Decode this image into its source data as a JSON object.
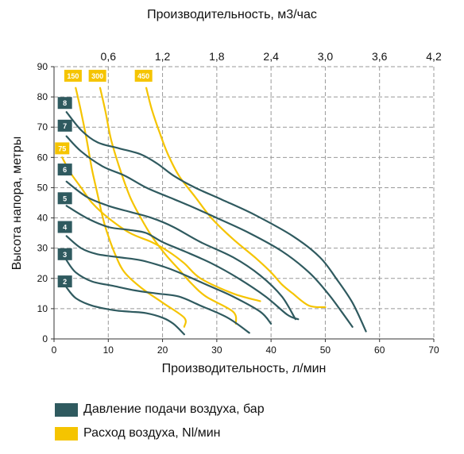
{
  "chart_data": {
    "type": "line",
    "title": "",
    "xlabel": "Производительность, л/мин",
    "x2label": "Производительность, м3/час",
    "ylabel": "Высота напора, метры",
    "xlim": [
      0,
      70
    ],
    "ylim": [
      0,
      90
    ],
    "x_ticks": [
      "0",
      "10",
      "20",
      "30",
      "40",
      "50",
      "60",
      "70"
    ],
    "y_ticks": [
      "0",
      "10",
      "20",
      "30",
      "40",
      "50",
      "60",
      "70",
      "80",
      "90"
    ],
    "x2_ticks": [
      {
        "label": "0,6",
        "value": 10
      },
      {
        "label": "1,2",
        "value": 20
      },
      {
        "label": "1,8",
        "value": 30
      },
      {
        "label": "2,4",
        "value": 40
      },
      {
        "label": "3,0",
        "value": 50
      },
      {
        "label": "3,6",
        "value": 60
      },
      {
        "label": "4,2",
        "value": 70
      }
    ],
    "grid": true,
    "colors": {
      "pressure": "#2f5a5f",
      "air": "#f5c400",
      "grid": "#999999",
      "axis": "#333333",
      "badge_text": "#ffffff"
    },
    "series": [
      {
        "group": "pressure",
        "label": "8",
        "badge": [
          2,
          78
        ],
        "points": [
          [
            2.3,
            75
          ],
          [
            5,
            69
          ],
          [
            8,
            65
          ],
          [
            12,
            63
          ],
          [
            16,
            61
          ],
          [
            19,
            58
          ],
          [
            22,
            54
          ],
          [
            26,
            50
          ],
          [
            31,
            46
          ],
          [
            37,
            41
          ],
          [
            44,
            34
          ],
          [
            49,
            27
          ],
          [
            52,
            20
          ],
          [
            55,
            12
          ],
          [
            57.5,
            2.5
          ]
        ]
      },
      {
        "group": "pressure",
        "label": "7",
        "badge": [
          2,
          70.5
        ],
        "points": [
          [
            2.3,
            67
          ],
          [
            5,
            62
          ],
          [
            9,
            57
          ],
          [
            13,
            54
          ],
          [
            17,
            50
          ],
          [
            21,
            47
          ],
          [
            25,
            44
          ],
          [
            30,
            40
          ],
          [
            36,
            35
          ],
          [
            42,
            29
          ],
          [
            47,
            22
          ],
          [
            50.5,
            15
          ],
          [
            53,
            9
          ],
          [
            55,
            4
          ]
        ]
      },
      {
        "group": "pressure",
        "label": "6",
        "badge": [
          2,
          56
        ],
        "points": [
          [
            2.3,
            52
          ],
          [
            6,
            47
          ],
          [
            10,
            44
          ],
          [
            14,
            42
          ],
          [
            18,
            40
          ],
          [
            22,
            37
          ],
          [
            27,
            32
          ],
          [
            33,
            27
          ],
          [
            38,
            21
          ],
          [
            42,
            14
          ],
          [
            44.5,
            6.5
          ]
        ]
      },
      {
        "group": "pressure",
        "label": "5",
        "badge": [
          2,
          46.5
        ],
        "points": [
          [
            2.3,
            44
          ],
          [
            6,
            40
          ],
          [
            10,
            37
          ],
          [
            14,
            36
          ],
          [
            17,
            35
          ],
          [
            20,
            32
          ],
          [
            24,
            29
          ],
          [
            29,
            25
          ],
          [
            34,
            20
          ],
          [
            39,
            14
          ],
          [
            43,
            8
          ],
          [
            45,
            6.5
          ]
        ]
      },
      {
        "group": "pressure",
        "label": "4",
        "badge": [
          2,
          37
        ],
        "points": [
          [
            2.3,
            34
          ],
          [
            5,
            30
          ],
          [
            8,
            28
          ],
          [
            12,
            27
          ],
          [
            16,
            26
          ],
          [
            20,
            24
          ],
          [
            23,
            22
          ],
          [
            28,
            18
          ],
          [
            33,
            14
          ],
          [
            38,
            9
          ],
          [
            40,
            5
          ]
        ]
      },
      {
        "group": "pressure",
        "label": "3",
        "badge": [
          2,
          28
        ],
        "points": [
          [
            2.3,
            26
          ],
          [
            4,
            22
          ],
          [
            7,
            19
          ],
          [
            11,
            17.5
          ],
          [
            15,
            16
          ],
          [
            19,
            15
          ],
          [
            23,
            14
          ],
          [
            27,
            11
          ],
          [
            32,
            7
          ],
          [
            36,
            2
          ]
        ]
      },
      {
        "group": "pressure",
        "label": "2",
        "badge": [
          2,
          19
        ],
        "points": [
          [
            2.3,
            17
          ],
          [
            4,
            13.5
          ],
          [
            7,
            11
          ],
          [
            11,
            9.5
          ],
          [
            14,
            9
          ],
          [
            17,
            8.5
          ],
          [
            20,
            7
          ],
          [
            22,
            5
          ],
          [
            24,
            1.5
          ]
        ]
      },
      {
        "group": "air",
        "label": "150",
        "badge": [
          3.5,
          87
        ],
        "points": [
          [
            4,
            83
          ],
          [
            5,
            75
          ],
          [
            6,
            66
          ],
          [
            7,
            56
          ],
          [
            8,
            48
          ],
          [
            9,
            40
          ],
          [
            10,
            34
          ],
          [
            11.5,
            27
          ],
          [
            13,
            22
          ],
          [
            16,
            17
          ],
          [
            20,
            12
          ],
          [
            24,
            7
          ],
          [
            24,
            4
          ]
        ]
      },
      {
        "group": "air",
        "label": "300",
        "badge": [
          8,
          87
        ],
        "points": [
          [
            8.5,
            83
          ],
          [
            9.5,
            75
          ],
          [
            10.5,
            66
          ],
          [
            12,
            57
          ],
          [
            14,
            47
          ],
          [
            16,
            40
          ],
          [
            18,
            34
          ],
          [
            20.5,
            28
          ],
          [
            23,
            23
          ],
          [
            25.5,
            18
          ],
          [
            28,
            14
          ],
          [
            33,
            9
          ],
          [
            33.5,
            5
          ]
        ]
      },
      {
        "group": "air",
        "label": "450",
        "badge": [
          16.5,
          87
        ],
        "points": [
          [
            17,
            83
          ],
          [
            18,
            76
          ],
          [
            19.5,
            68
          ],
          [
            21,
            61
          ],
          [
            23,
            54
          ],
          [
            26,
            47
          ],
          [
            29,
            40
          ],
          [
            33,
            33
          ],
          [
            37,
            27
          ],
          [
            40,
            22
          ],
          [
            42,
            18
          ],
          [
            44,
            15
          ],
          [
            47,
            11
          ],
          [
            50,
            10.5
          ]
        ]
      },
      {
        "group": "air",
        "label": "75",
        "badge": [
          1.5,
          63
        ],
        "points": [
          [
            1.5,
            60
          ],
          [
            3,
            55
          ],
          [
            5,
            50
          ],
          [
            7,
            45
          ],
          [
            10,
            40
          ],
          [
            14,
            35
          ],
          [
            18,
            32
          ],
          [
            21,
            29
          ],
          [
            24,
            25
          ],
          [
            27,
            20
          ],
          [
            33,
            15
          ],
          [
            38,
            12.5
          ]
        ]
      }
    ]
  },
  "legend": {
    "pressure_label": "Давление подачи воздуха, бар",
    "air_label": "Расход воздуха, Nl/мин"
  }
}
